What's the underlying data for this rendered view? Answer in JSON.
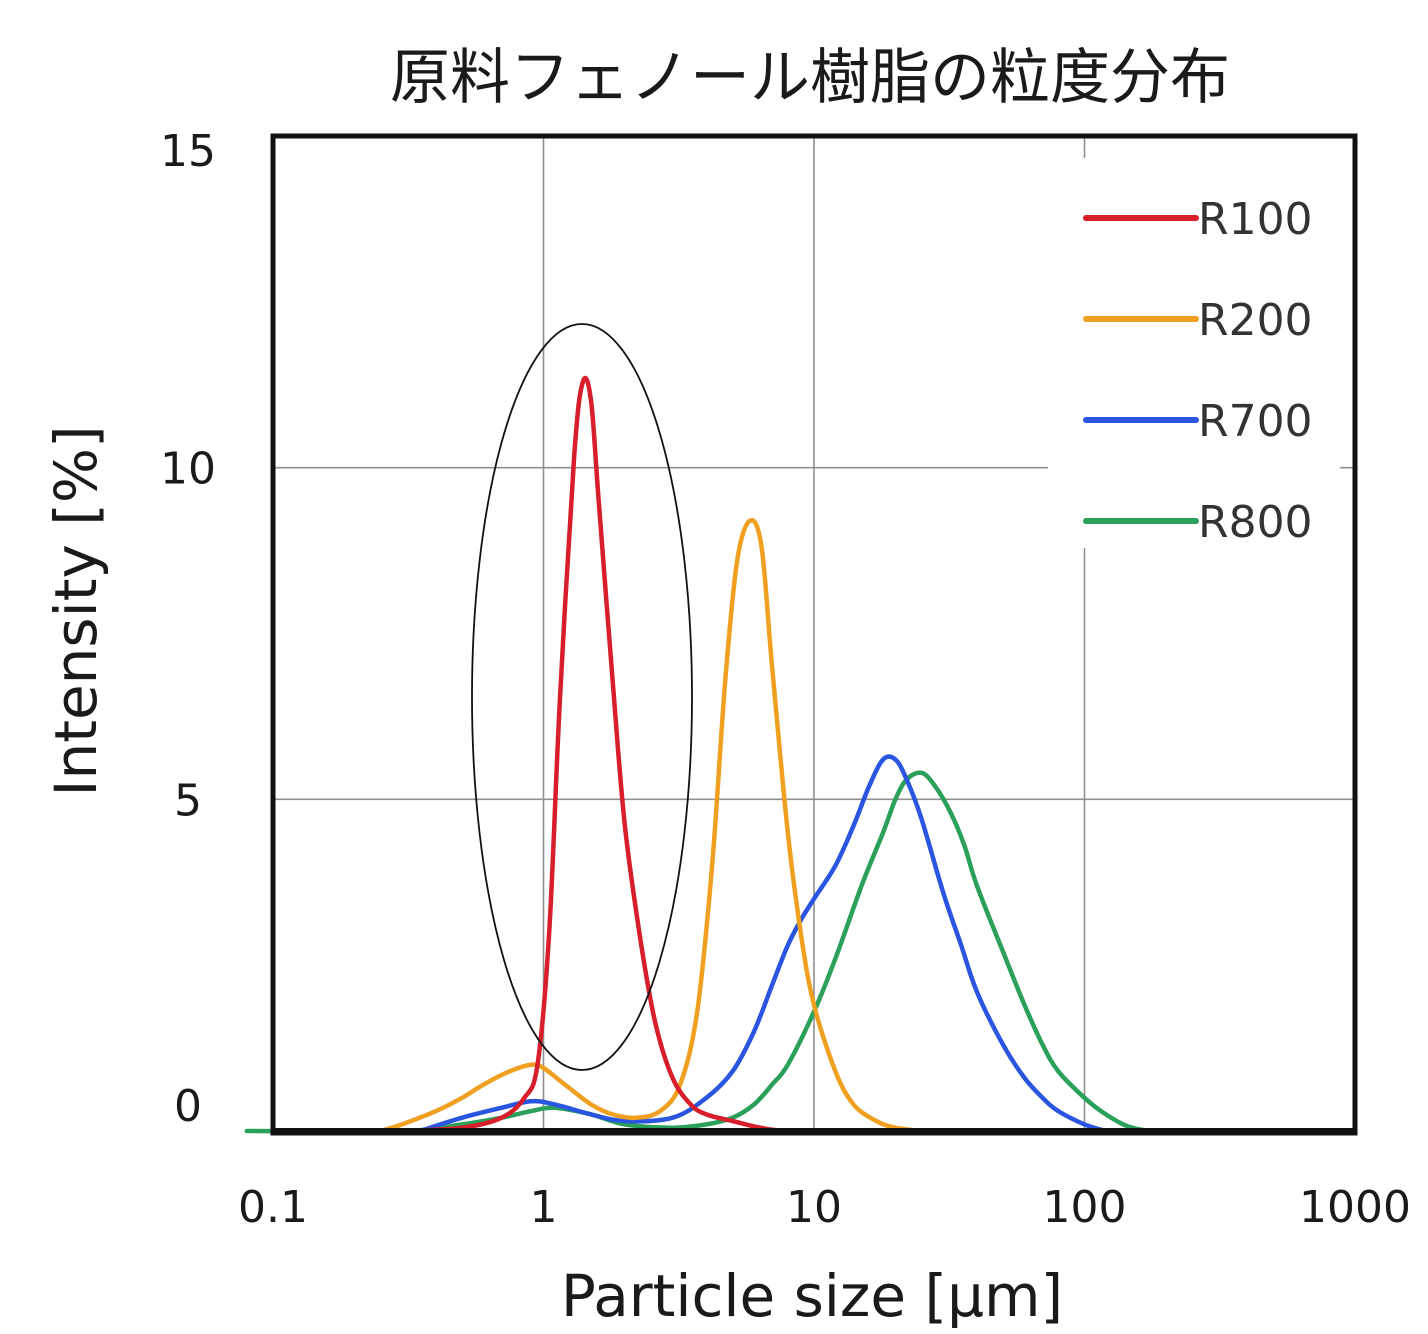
{
  "chart_data": {
    "type": "line",
    "title": "原料フェノール樹脂の粒度分布",
    "xlabel": "Particle size [μm]",
    "ylabel": "Intensity [%]",
    "x_scale": "log",
    "xlim": [
      0.1,
      1000
    ],
    "ylim": [
      0,
      15
    ],
    "x_ticks": [
      0.1,
      1,
      10,
      100,
      1000
    ],
    "x_tick_labels": [
      "0.1",
      "1",
      "10",
      "100",
      "1000"
    ],
    "y_ticks": [
      0,
      5,
      10,
      15
    ],
    "y_tick_labels": [
      "0",
      "5",
      "10",
      "15"
    ],
    "grid": true,
    "legend_position": "top-right",
    "annotation": "ellipse around the R100 peak",
    "series": [
      {
        "name": "R100",
        "color": "#d81e2a",
        "x": [
          0.3,
          0.5,
          0.7,
          0.85,
          0.95,
          1.05,
          1.15,
          1.3,
          1.4,
          1.5,
          1.6,
          1.8,
          2.0,
          2.3,
          2.6,
          3.0,
          3.5,
          4.0,
          5.0,
          6.0,
          7.0,
          8.0
        ],
        "y": [
          0,
          0.05,
          0.2,
          0.5,
          1.0,
          3.0,
          6.5,
          10.2,
          11.3,
          11.0,
          9.5,
          6.8,
          4.6,
          2.8,
          1.6,
          0.8,
          0.4,
          0.25,
          0.15,
          0.07,
          0.02,
          0
        ]
      },
      {
        "name": "R200",
        "color": "#f0a020",
        "x": [
          0.25,
          0.3,
          0.4,
          0.5,
          0.6,
          0.75,
          0.9,
          1.0,
          1.2,
          1.5,
          1.8,
          2.2,
          2.7,
          3.2,
          3.7,
          4.2,
          4.7,
          5.2,
          5.8,
          6.4,
          7.0,
          8.0,
          9.0,
          10.0,
          12.0,
          14.0,
          17.0,
          20.0,
          25.0
        ],
        "y": [
          0,
          0.1,
          0.3,
          0.5,
          0.7,
          0.9,
          1.0,
          0.95,
          0.7,
          0.4,
          0.25,
          0.2,
          0.3,
          0.7,
          1.8,
          4.0,
          6.8,
          8.6,
          9.2,
          8.8,
          7.0,
          4.5,
          2.9,
          1.9,
          0.9,
          0.4,
          0.15,
          0.05,
          0
        ]
      },
      {
        "name": "R700",
        "color": "#2a55e0",
        "x": [
          0.35,
          0.5,
          0.7,
          0.9,
          1.1,
          1.5,
          2.0,
          3.0,
          4.0,
          5.0,
          6.0,
          7.0,
          8.0,
          9.0,
          10.0,
          12.0,
          14.0,
          16.0,
          18.0,
          20.0,
          22.0,
          25.0,
          30.0,
          35.0,
          40.0,
          50.0,
          60.0,
          70.0,
          80.0,
          100.0,
          120.0
        ],
        "y": [
          0,
          0.2,
          0.35,
          0.45,
          0.4,
          0.25,
          0.15,
          0.2,
          0.5,
          0.9,
          1.5,
          2.2,
          2.8,
          3.2,
          3.5,
          4.0,
          4.6,
          5.2,
          5.6,
          5.6,
          5.3,
          4.7,
          3.6,
          2.8,
          2.1,
          1.3,
          0.8,
          0.5,
          0.3,
          0.1,
          0
        ]
      },
      {
        "name": "R800",
        "color": "#2aa05a",
        "x": [
          0.08,
          0.3,
          0.5,
          0.7,
          0.9,
          1.1,
          1.5,
          2.0,
          3.0,
          4.0,
          5.0,
          6.0,
          7.0,
          8.0,
          10.0,
          12.0,
          15.0,
          18.0,
          20.0,
          22.0,
          25.0,
          28.0,
          32.0,
          36.0,
          40.0,
          50.0,
          60.0,
          70.0,
          80.0,
          100.0,
          120.0,
          150.0,
          200.0,
          500.0,
          1000.0
        ],
        "y": [
          0,
          0,
          0.1,
          0.2,
          0.3,
          0.35,
          0.25,
          0.1,
          0.05,
          0.1,
          0.2,
          0.4,
          0.7,
          1.0,
          1.8,
          2.6,
          3.7,
          4.5,
          5.0,
          5.3,
          5.4,
          5.2,
          4.8,
          4.3,
          3.7,
          2.7,
          1.9,
          1.3,
          0.9,
          0.5,
          0.25,
          0.05,
          0,
          0,
          0
        ]
      }
    ]
  }
}
